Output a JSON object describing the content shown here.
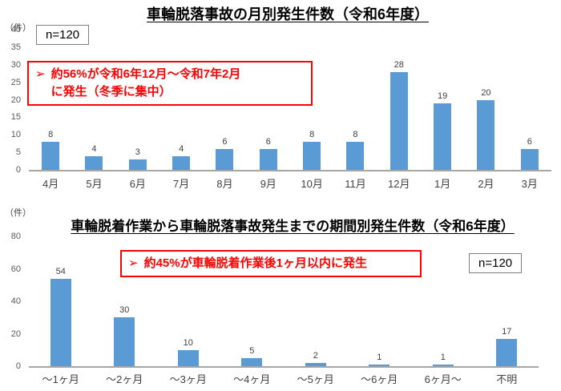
{
  "page": {
    "background": "#FFFFFF"
  },
  "colors": {
    "bar": "#5B9BD5",
    "axis": "#A6A6A6",
    "tick": "#595959",
    "label": "#404040",
    "title": "#000000",
    "red": "#FF0000"
  },
  "chart_data": [
    {
      "type": "bar",
      "title": "車輪脱落事故の月別発生件数（令和6年度）",
      "unit_label": "（件）",
      "n_label": "n=120",
      "categories": [
        "4月",
        "5月",
        "6月",
        "7月",
        "8月",
        "9月",
        "10月",
        "11月",
        "12月",
        "1月",
        "2月",
        "3月"
      ],
      "values": [
        8,
        4,
        3,
        4,
        6,
        6,
        8,
        8,
        28,
        19,
        20,
        6
      ],
      "xlabel": "",
      "ylabel": "件",
      "ylim": [
        0,
        40
      ],
      "yticks": [
        0,
        5,
        10,
        15,
        20,
        25,
        30,
        35,
        40
      ],
      "grid": false,
      "legend": "none",
      "annotation": {
        "bullet": "➢",
        "text": "約56%が令和6年12月～令和7年2月\nに発生（冬季に集中）"
      }
    },
    {
      "type": "bar",
      "title": "車輪脱着作業から車輪脱落事故発生までの期間別発生件数（令和6年度）",
      "unit_label": "（件）",
      "n_label": "n=120",
      "categories": [
        "～1ヶ月",
        "～2ヶ月",
        "～3ヶ月",
        "～4ヶ月",
        "～5ヶ月",
        "～6ヶ月",
        "6ヶ月～",
        "不明"
      ],
      "values": [
        54,
        30,
        10,
        5,
        2,
        1,
        1,
        17
      ],
      "xlabel": "",
      "ylabel": "件",
      "ylim": [
        0,
        80
      ],
      "yticks": [
        0,
        20,
        40,
        60,
        80
      ],
      "grid": false,
      "legend": "none",
      "annotation": {
        "bullet": "➢",
        "text": "約45%が車輪脱着作業後1ヶ月以内に発生"
      }
    }
  ]
}
